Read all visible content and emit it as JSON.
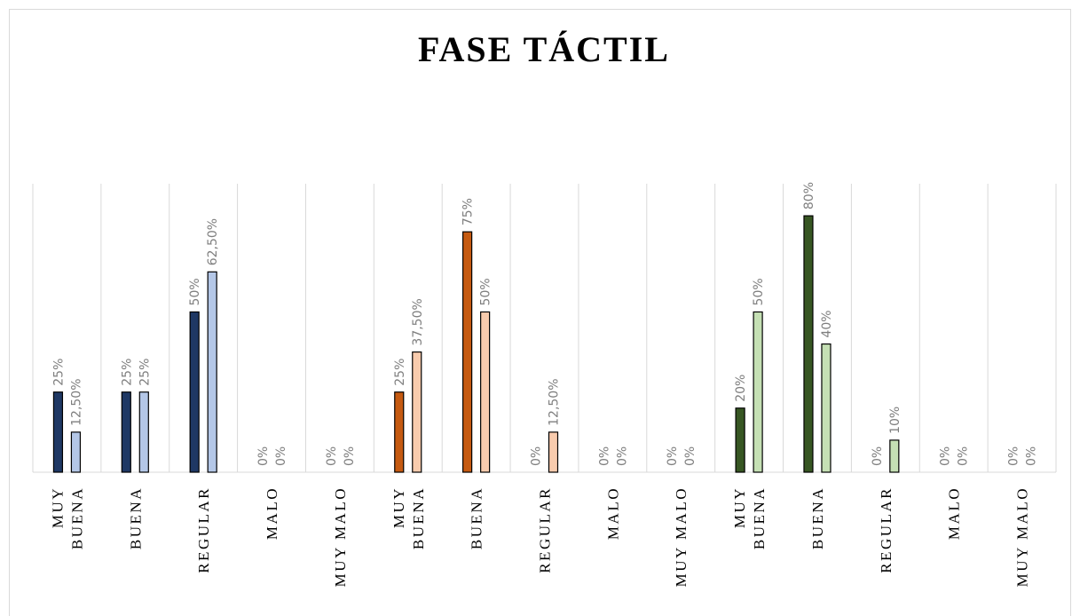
{
  "chart_data": {
    "type": "bar",
    "title": "FASE TÁCTIL",
    "categories": [
      "MUY BUENA",
      "BUENA",
      "REGULAR",
      "MALO",
      "MUY MALO",
      "MUY BUENA",
      "BUENA",
      "REGULAR",
      "MALO",
      "MUY MALO",
      "MUY BUENA",
      "BUENA",
      "REGULAR",
      "MALO",
      "MUY MALO"
    ],
    "series": [
      {
        "colors": [
          "#1f3864",
          "#1f3864",
          "#1f3864",
          "#1f3864",
          "#1f3864",
          "#c55a11",
          "#c55a11",
          "#c55a11",
          "#c55a11",
          "#c55a11",
          "#375623",
          "#375623",
          "#375623",
          "#375623",
          "#375623"
        ],
        "values": [
          25,
          25,
          50,
          0,
          0,
          25,
          75,
          0,
          0,
          0,
          20,
          80,
          0,
          0,
          0
        ],
        "value_labels": [
          "25%",
          "25%",
          "50%",
          "0%",
          "0%",
          "25%",
          "75%",
          "0%",
          "0%",
          "0%",
          "20%",
          "80%",
          "0%",
          "0%",
          "0%"
        ]
      },
      {
        "colors": [
          "#b4c7e7",
          "#b4c7e7",
          "#b4c7e7",
          "#b4c7e7",
          "#b4c7e7",
          "#f8cbad",
          "#f8cbad",
          "#f8cbad",
          "#f8cbad",
          "#f8cbad",
          "#c5e0b4",
          "#c5e0b4",
          "#c5e0b4",
          "#c5e0b4",
          "#c5e0b4"
        ],
        "values": [
          12.5,
          25,
          62.5,
          0,
          0,
          37.5,
          50,
          12.5,
          0,
          0,
          50,
          40,
          10,
          0,
          0
        ],
        "value_labels": [
          "12,50%",
          "25%",
          "62,50%",
          "0%",
          "0%",
          "37,50%",
          "50%",
          "12,50%",
          "0%",
          "0%",
          "50%",
          "40%",
          "10%",
          "0%",
          "0%"
        ]
      }
    ],
    "ylim": [
      0,
      90
    ]
  }
}
